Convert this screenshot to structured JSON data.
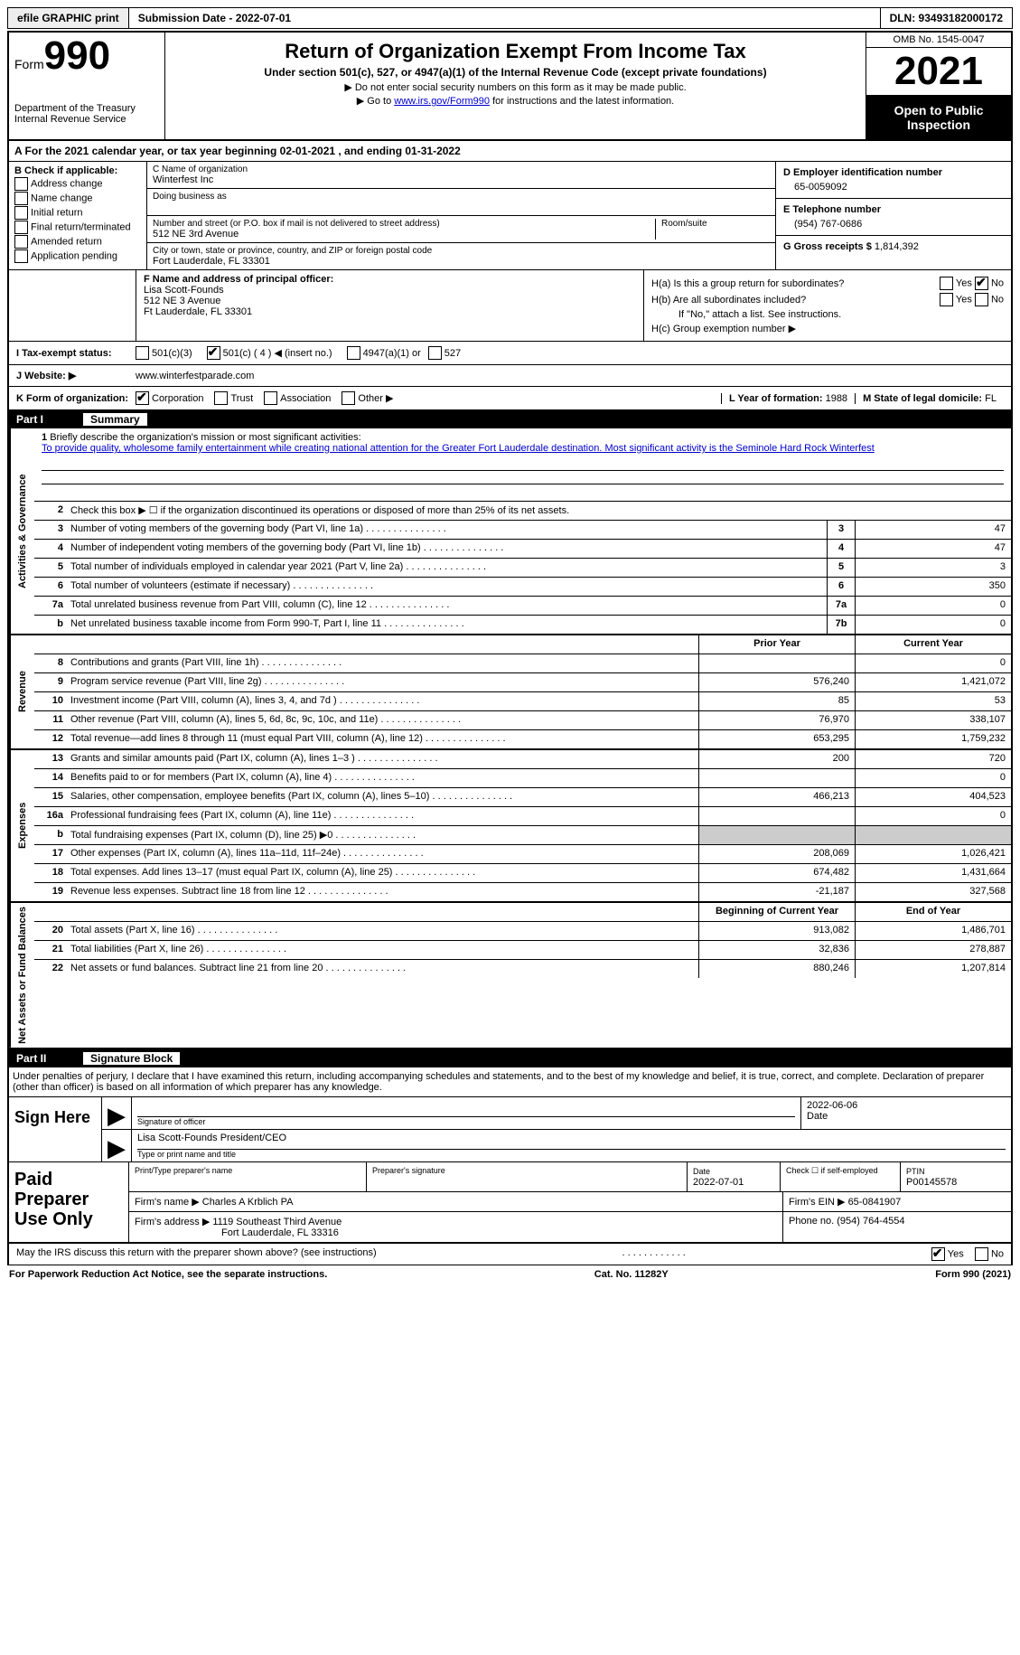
{
  "topbar": {
    "efile_btn": "efile GRAPHIC print",
    "submission": "Submission Date - 2022-07-01",
    "dln": "DLN: 93493182000172"
  },
  "header": {
    "form_label": "Form",
    "form_number": "990",
    "dept": "Department of the Treasury Internal Revenue Service",
    "title": "Return of Organization Exempt From Income Tax",
    "sub": "Under section 501(c), 527, or 4947(a)(1) of the Internal Revenue Code (except private foundations)",
    "note1": "Do not enter social security numbers on this form as it may be made public.",
    "note2_pre": "Go to ",
    "note2_link": "www.irs.gov/Form990",
    "note2_post": " for instructions and the latest information.",
    "omb": "OMB No. 1545-0047",
    "year": "2021",
    "open": "Open to Public Inspection"
  },
  "line_a": "A For the 2021 calendar year, or tax year beginning 02-01-2021   , and ending 01-31-2022",
  "section_b": {
    "title": "B Check if applicable:",
    "opts": [
      "Address change",
      "Name change",
      "Initial return",
      "Final return/terminated",
      "Amended return",
      "Application pending"
    ]
  },
  "section_c": {
    "name_lbl": "C Name of organization",
    "name": "Winterfest Inc",
    "dba_lbl": "Doing business as",
    "addr_lbl": "Number and street (or P.O. box if mail is not delivered to street address)",
    "addr": "512 NE 3rd Avenue",
    "room_lbl": "Room/suite",
    "city_lbl": "City or town, state or province, country, and ZIP or foreign postal code",
    "city": "Fort Lauderdale, FL  33301"
  },
  "section_d": {
    "lbl": "D Employer identification number",
    "val": "65-0059092"
  },
  "section_e": {
    "lbl": "E Telephone number",
    "val": "(954) 767-0686"
  },
  "section_g": {
    "lbl": "G Gross receipts $",
    "val": "1,814,392"
  },
  "section_f": {
    "lbl": "F Name and address of principal officer:",
    "name": "Lisa Scott-Founds",
    "addr1": "512 NE 3 Avenue",
    "addr2": "Ft Lauderdale, FL  33301"
  },
  "section_h": {
    "a_lbl": "H(a)  Is this a group return for subordinates?",
    "b_lbl": "H(b)  Are all subordinates included?",
    "b_note": "If \"No,\" attach a list. See instructions.",
    "c_lbl": "H(c)  Group exemption number ▶",
    "yes": "Yes",
    "no": "No"
  },
  "status": {
    "lbl": "I  Tax-exempt status:",
    "o1": "501(c)(3)",
    "o2": "501(c) ( 4 ) ◀ (insert no.)",
    "o3": "4947(a)(1) or",
    "o4": "527"
  },
  "website": {
    "lbl": "J  Website: ▶",
    "val": "www.winterfestparade.com"
  },
  "k_line": {
    "lbl": "K Form of organization:",
    "o1": "Corporation",
    "o2": "Trust",
    "o3": "Association",
    "o4": "Other ▶",
    "l_lbl": "L Year of formation:",
    "l_val": "1988",
    "m_lbl": "M State of legal domicile:",
    "m_val": "FL"
  },
  "part1": {
    "hdr_num": "Part I",
    "hdr_title": "Summary",
    "side1": "Activities & Governance",
    "side2": "Revenue",
    "side3": "Expenses",
    "side4": "Net Assets or Fund Balances",
    "mission_num": "1",
    "mission_lbl": "Briefly describe the organization's mission or most significant activities:",
    "mission_txt": "To provide quality, wholesome family entertainment while creating national attention for the Greater Fort Lauderdale destination. Most significant activity is the Seminole Hard Rock Winterfest",
    "l2": "Check this box ▶ ☐ if the organization discontinued its operations or disposed of more than 25% of its net assets.",
    "lines_ag": [
      {
        "n": "3",
        "d": "Number of voting members of the governing body (Part VI, line 1a)",
        "box": "3",
        "v": "47"
      },
      {
        "n": "4",
        "d": "Number of independent voting members of the governing body (Part VI, line 1b)",
        "box": "4",
        "v": "47"
      },
      {
        "n": "5",
        "d": "Total number of individuals employed in calendar year 2021 (Part V, line 2a)",
        "box": "5",
        "v": "3"
      },
      {
        "n": "6",
        "d": "Total number of volunteers (estimate if necessary)",
        "box": "6",
        "v": "350"
      },
      {
        "n": "7a",
        "d": "Total unrelated business revenue from Part VIII, column (C), line 12",
        "box": "7a",
        "v": "0"
      },
      {
        "n": "b",
        "d": "Net unrelated business taxable income from Form 990-T, Part I, line 11",
        "box": "7b",
        "v": "0"
      }
    ],
    "col_head_prior": "Prior Year",
    "col_head_curr": "Current Year",
    "lines_rev": [
      {
        "n": "8",
        "d": "Contributions and grants (Part VIII, line 1h)",
        "p": "",
        "c": "0"
      },
      {
        "n": "9",
        "d": "Program service revenue (Part VIII, line 2g)",
        "p": "576,240",
        "c": "1,421,072"
      },
      {
        "n": "10",
        "d": "Investment income (Part VIII, column (A), lines 3, 4, and 7d )",
        "p": "85",
        "c": "53"
      },
      {
        "n": "11",
        "d": "Other revenue (Part VIII, column (A), lines 5, 6d, 8c, 9c, 10c, and 11e)",
        "p": "76,970",
        "c": "338,107"
      },
      {
        "n": "12",
        "d": "Total revenue—add lines 8 through 11 (must equal Part VIII, column (A), line 12)",
        "p": "653,295",
        "c": "1,759,232"
      }
    ],
    "lines_exp": [
      {
        "n": "13",
        "d": "Grants and similar amounts paid (Part IX, column (A), lines 1–3 )",
        "p": "200",
        "c": "720"
      },
      {
        "n": "14",
        "d": "Benefits paid to or for members (Part IX, column (A), line 4)",
        "p": "",
        "c": "0"
      },
      {
        "n": "15",
        "d": "Salaries, other compensation, employee benefits (Part IX, column (A), lines 5–10)",
        "p": "466,213",
        "c": "404,523"
      },
      {
        "n": "16a",
        "d": "Professional fundraising fees (Part IX, column (A), line 11e)",
        "p": "",
        "c": "0"
      },
      {
        "n": "b",
        "d": "Total fundraising expenses (Part IX, column (D), line 25) ▶0",
        "p": "shade",
        "c": "shade"
      },
      {
        "n": "17",
        "d": "Other expenses (Part IX, column (A), lines 11a–11d, 11f–24e)",
        "p": "208,069",
        "c": "1,026,421"
      },
      {
        "n": "18",
        "d": "Total expenses. Add lines 13–17 (must equal Part IX, column (A), line 25)",
        "p": "674,482",
        "c": "1,431,664"
      },
      {
        "n": "19",
        "d": "Revenue less expenses. Subtract line 18 from line 12",
        "p": "-21,187",
        "c": "327,568"
      }
    ],
    "col_head_beg": "Beginning of Current Year",
    "col_head_end": "End of Year",
    "lines_net": [
      {
        "n": "20",
        "d": "Total assets (Part X, line 16)",
        "p": "913,082",
        "c": "1,486,701"
      },
      {
        "n": "21",
        "d": "Total liabilities (Part X, line 26)",
        "p": "32,836",
        "c": "278,887"
      },
      {
        "n": "22",
        "d": "Net assets or fund balances. Subtract line 21 from line 20",
        "p": "880,246",
        "c": "1,207,814"
      }
    ]
  },
  "part2": {
    "hdr_num": "Part II",
    "hdr_title": "Signature Block",
    "intro": "Under penalties of perjury, I declare that I have examined this return, including accompanying schedules and statements, and to the best of my knowledge and belief, it is true, correct, and complete. Declaration of preparer (other than officer) is based on all information of which preparer has any knowledge.",
    "sign_here": "Sign Here",
    "sig_officer_lbl": "Signature of officer",
    "sig_date": "2022-06-06",
    "date_lbl": "Date",
    "officer_name": "Lisa Scott-Founds  President/CEO",
    "officer_name_lbl": "Type or print name and title",
    "paid_prep": "Paid Preparer Use Only",
    "prep_name_lbl": "Print/Type preparer's name",
    "prep_sig_lbl": "Preparer's signature",
    "prep_date_lbl": "Date",
    "prep_date": "2022-07-01",
    "check_self_lbl": "Check ☐ if self-employed",
    "ptin_lbl": "PTIN",
    "ptin": "P00145578",
    "firm_name_lbl": "Firm's name    ▶",
    "firm_name": "Charles A Krblich PA",
    "firm_ein_lbl": "Firm's EIN ▶",
    "firm_ein": "65-0841907",
    "firm_addr_lbl": "Firm's address ▶",
    "firm_addr1": "1119 Southeast Third Avenue",
    "firm_addr2": "Fort Lauderdale, FL  33316",
    "phone_lbl": "Phone no.",
    "phone": "(954) 764-4554",
    "discuss": "May the IRS discuss this return with the preparer shown above? (see instructions)",
    "yes": "Yes",
    "no": "No"
  },
  "footer": {
    "left": "For Paperwork Reduction Act Notice, see the separate instructions.",
    "mid": "Cat. No. 11282Y",
    "right": "Form 990 (2021)"
  }
}
